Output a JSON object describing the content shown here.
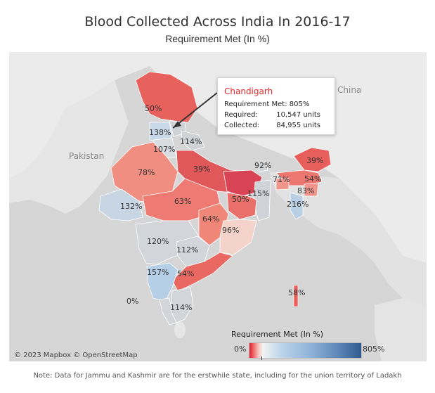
{
  "title": "Blood Collected Across India In 2016-17",
  "subtitle": "Requirement Met (In %)",
  "countries": {
    "pakistan": "Pakistan",
    "china": "China"
  },
  "colors": {
    "strong_red": "#dc3f4b",
    "red": "#e85a58",
    "light_red": "#f08a7c",
    "pale": "#f4d6cd",
    "grey": "#cfd3d6",
    "light_blue": "#b9d3ea",
    "mid_blue": "#8fb2d8",
    "dark_blue": "#2f5b8f",
    "tooltip_title": "#e8262a"
  },
  "tooltip": {
    "title": "Chandigarh",
    "requirement_label": "Requirement Met: 805%",
    "required_label": "Required:",
    "required_value": "10,547 units",
    "collected_label": "Collected:",
    "collected_value": "84,955 units"
  },
  "state_labels": {
    "jk": "50%",
    "pb": "138%",
    "hr": "107%",
    "uk": "114%",
    "raj": "78%",
    "up": "39%",
    "bihar": "50%",
    "sikkim": "92%",
    "arunachal": "39%",
    "meghalaya": "71%",
    "assam": "54%",
    "nagaland": "83%",
    "tripura": "216%",
    "jh": "115%",
    "guj": "132%",
    "mp": "63%",
    "cg": "64%",
    "od": "96%",
    "mh": "120%",
    "tg": "112%",
    "ka": "157%",
    "ap": "54%",
    "kerala": "114%",
    "lak": "0%",
    "anI": "58%"
  },
  "map_credit": "© 2023 Mapbox © OpenStreetMap",
  "legend": {
    "title": "Requirement Met (In %)",
    "min": "0%",
    "max": "805%"
  },
  "note": "Note: Data for Jammu and Kashmir are for the erstwhile state, including for the union territory of Ladakh"
}
